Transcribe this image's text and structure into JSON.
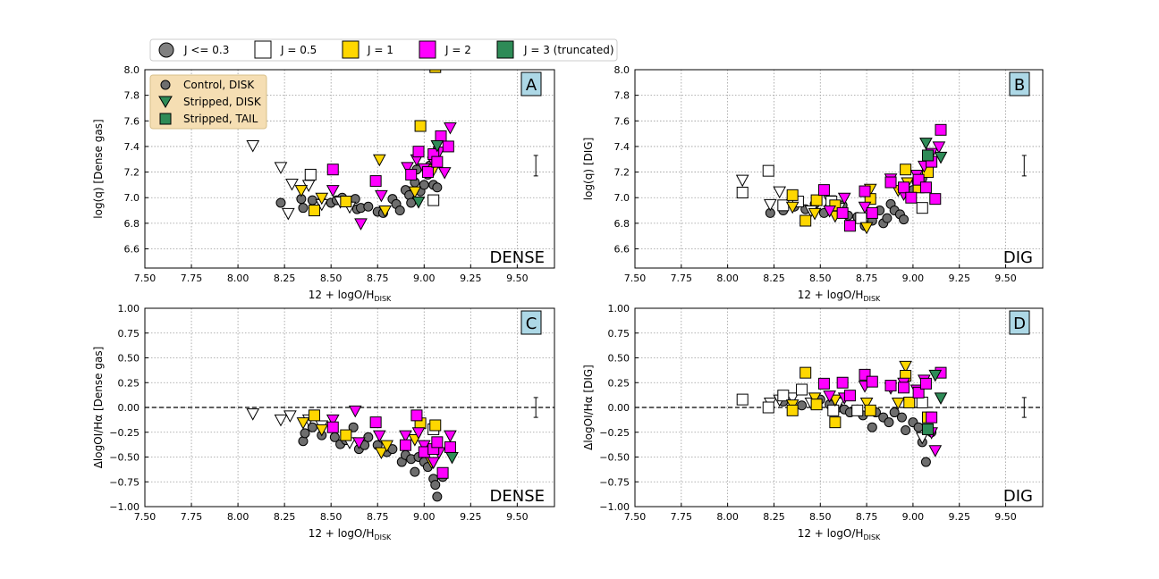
{
  "legend_top": {
    "entries": [
      {
        "label": "J <= 0.3",
        "marker": "circle",
        "color": "#808080"
      },
      {
        "label": "J = 0.5",
        "marker": "square",
        "color": "#ffffff"
      },
      {
        "label": "J = 1",
        "marker": "square",
        "color": "#ffd700"
      },
      {
        "label": "J = 2",
        "marker": "square",
        "color": "#ff00ff"
      },
      {
        "label": "J = 3 (truncated)",
        "marker": "square",
        "color": "#2e8b57"
      }
    ]
  },
  "legend_inner": {
    "entries": [
      {
        "label": "Control, DISK",
        "marker": "circle",
        "color": "#808080"
      },
      {
        "label": "Stripped, DISK",
        "marker": "triangle",
        "color": "#2e8b57"
      },
      {
        "label": "Stripped, TAIL",
        "marker": "square",
        "color": "#2e8b57"
      }
    ]
  },
  "colors": {
    "gray": "#6e6e6e",
    "white": "#ffffff",
    "yellow": "#ffd700",
    "magenta": "#ff00ff",
    "green": "#2e8b57",
    "panel_label_bg": "#add8e6",
    "legend_bg": "#f5deb3"
  },
  "chart_data": [
    {
      "id": "A",
      "type": "scatter",
      "label": "A",
      "annotation": "DENSE",
      "xlabel_main": "12 + logO/H",
      "xlabel_sub": "DISK",
      "ylabel": "log(q) [Dense gas]",
      "xlim": [
        7.5,
        9.7
      ],
      "ylim": [
        6.45,
        8.0
      ],
      "xticks": [
        "7.50",
        "7.75",
        "8.00",
        "8.25",
        "8.50",
        "8.75",
        "9.00",
        "9.25",
        "9.50"
      ],
      "yticks": [
        "6.6",
        "6.8",
        "7.0",
        "7.2",
        "7.4",
        "7.6",
        "7.8",
        "8.0"
      ],
      "errorbar": {
        "x": 9.6,
        "y": 7.25,
        "err": 0.08
      },
      "zero_line": false,
      "circles": [
        [
          8.23,
          6.96
        ],
        [
          8.34,
          6.99
        ],
        [
          8.35,
          6.92
        ],
        [
          8.4,
          6.98
        ],
        [
          8.45,
          6.97
        ],
        [
          8.5,
          6.96
        ],
        [
          8.53,
          6.98
        ],
        [
          8.56,
          7.0
        ],
        [
          8.6,
          6.95
        ],
        [
          8.63,
          6.99
        ],
        [
          8.64,
          6.91
        ],
        [
          8.66,
          6.92
        ],
        [
          8.7,
          6.93
        ],
        [
          8.75,
          6.89
        ],
        [
          8.78,
          6.88
        ],
        [
          8.83,
          6.99
        ],
        [
          8.85,
          6.95
        ],
        [
          8.87,
          6.9
        ],
        [
          8.9,
          7.06
        ],
        [
          8.92,
          7.02
        ],
        [
          8.93,
          6.96
        ],
        [
          8.95,
          7.12
        ],
        [
          8.96,
          7.22
        ],
        [
          8.98,
          7.05
        ],
        [
          9.0,
          7.1
        ],
        [
          9.02,
          7.18
        ],
        [
          9.03,
          7.25
        ],
        [
          9.05,
          7.1
        ],
        [
          9.07,
          7.08
        ]
      ],
      "squares_white": [
        [
          8.39,
          7.18
        ],
        [
          9.05,
          6.98
        ]
      ],
      "squares_yellow": [
        [
          8.41,
          6.9
        ],
        [
          8.58,
          6.97
        ],
        [
          8.98,
          7.56
        ],
        [
          9.06,
          8.02
        ]
      ],
      "squares_magenta": [
        [
          8.51,
          7.22
        ],
        [
          8.74,
          7.13
        ],
        [
          8.93,
          7.18
        ],
        [
          8.97,
          7.36
        ],
        [
          9.02,
          7.2
        ],
        [
          9.05,
          7.34
        ],
        [
          9.07,
          7.28
        ],
        [
          9.09,
          7.48
        ],
        [
          9.13,
          7.4
        ]
      ],
      "tri_white": [
        [
          8.08,
          7.41
        ],
        [
          8.23,
          7.24
        ],
        [
          8.27,
          6.88
        ],
        [
          8.29,
          7.11
        ],
        [
          8.38,
          7.1
        ],
        [
          8.45,
          6.95
        ],
        [
          8.55,
          6.97
        ],
        [
          8.6,
          6.93
        ]
      ],
      "tri_yellow": [
        [
          8.34,
          7.06
        ],
        [
          8.45,
          7.0
        ],
        [
          8.76,
          7.3
        ],
        [
          8.79,
          6.9
        ],
        [
          8.95,
          7.05
        ],
        [
          9.05,
          7.22
        ]
      ],
      "tri_magenta": [
        [
          8.51,
          7.06
        ],
        [
          8.66,
          6.8
        ],
        [
          8.77,
          7.02
        ],
        [
          8.91,
          7.24
        ],
        [
          8.96,
          7.3
        ],
        [
          9.0,
          7.23
        ],
        [
          9.05,
          7.28
        ],
        [
          9.08,
          7.36
        ],
        [
          9.11,
          7.2
        ],
        [
          9.14,
          7.55
        ]
      ],
      "tri_green": [
        [
          8.97,
          6.97
        ],
        [
          9.07,
          7.41
        ]
      ],
      "squares_green": []
    },
    {
      "id": "B",
      "type": "scatter",
      "label": "B",
      "annotation": "DIG",
      "xlabel_main": "12 + logO/H",
      "xlabel_sub": "DISK",
      "ylabel": "log(q) [DIG]",
      "xlim": [
        7.5,
        9.7
      ],
      "ylim": [
        6.45,
        8.0
      ],
      "xticks": [
        "7.50",
        "7.75",
        "8.00",
        "8.25",
        "8.50",
        "8.75",
        "9.00",
        "9.25",
        "9.50"
      ],
      "yticks": [
        "6.6",
        "6.8",
        "7.0",
        "7.2",
        "7.4",
        "7.6",
        "7.8",
        "8.0"
      ],
      "errorbar": {
        "x": 9.6,
        "y": 7.25,
        "err": 0.08
      },
      "zero_line": false,
      "circles": [
        [
          8.23,
          6.88
        ],
        [
          8.3,
          6.9
        ],
        [
          8.36,
          6.93
        ],
        [
          8.42,
          6.91
        ],
        [
          8.47,
          6.95
        ],
        [
          8.52,
          6.88
        ],
        [
          8.55,
          6.93
        ],
        [
          8.58,
          6.9
        ],
        [
          8.62,
          6.94
        ],
        [
          8.65,
          6.86
        ],
        [
          8.7,
          6.85
        ],
        [
          8.74,
          6.78
        ],
        [
          8.78,
          6.82
        ],
        [
          8.82,
          6.9
        ],
        [
          8.84,
          6.8
        ],
        [
          8.86,
          6.84
        ],
        [
          8.88,
          6.95
        ],
        [
          8.9,
          6.9
        ],
        [
          8.93,
          6.87
        ],
        [
          8.95,
          6.83
        ],
        [
          8.98,
          7.03
        ],
        [
          9.0,
          7.06
        ],
        [
          9.02,
          7.12
        ],
        [
          9.05,
          7.15
        ],
        [
          9.08,
          7.2
        ]
      ],
      "squares_white": [
        [
          8.08,
          7.04
        ],
        [
          8.22,
          7.21
        ],
        [
          8.3,
          6.94
        ],
        [
          8.38,
          6.97
        ],
        [
          8.56,
          6.97
        ],
        [
          8.72,
          6.84
        ],
        [
          9.05,
          6.92
        ]
      ],
      "squares_yellow": [
        [
          8.35,
          7.02
        ],
        [
          8.42,
          6.82
        ],
        [
          8.48,
          6.98
        ],
        [
          8.58,
          6.94
        ],
        [
          8.77,
          6.99
        ],
        [
          8.96,
          7.22
        ],
        [
          9.03,
          7.08
        ],
        [
          9.08,
          7.2
        ]
      ],
      "squares_magenta": [
        [
          8.52,
          7.06
        ],
        [
          8.62,
          6.88
        ],
        [
          8.66,
          6.78
        ],
        [
          8.74,
          7.05
        ],
        [
          8.78,
          6.88
        ],
        [
          8.88,
          7.12
        ],
        [
          8.95,
          7.08
        ],
        [
          8.99,
          7.0
        ],
        [
          9.03,
          7.14
        ],
        [
          9.07,
          7.08
        ],
        [
          9.1,
          7.28
        ],
        [
          9.12,
          6.99
        ],
        [
          9.15,
          7.53
        ]
      ],
      "tri_white": [
        [
          8.08,
          7.14
        ],
        [
          8.23,
          6.95
        ],
        [
          8.28,
          7.05
        ],
        [
          8.35,
          6.95
        ],
        [
          8.45,
          6.9
        ],
        [
          8.55,
          6.98
        ],
        [
          8.6,
          6.92
        ]
      ],
      "tri_yellow": [
        [
          8.35,
          6.93
        ],
        [
          8.47,
          6.88
        ],
        [
          8.58,
          6.86
        ],
        [
          8.75,
          6.77
        ],
        [
          8.77,
          7.07
        ],
        [
          8.92,
          7.06
        ],
        [
          8.97,
          7.12
        ]
      ],
      "tri_magenta": [
        [
          8.55,
          6.9
        ],
        [
          8.63,
          7.0
        ],
        [
          8.74,
          6.93
        ],
        [
          8.88,
          7.15
        ],
        [
          8.95,
          7.03
        ],
        [
          9.02,
          7.18
        ],
        [
          9.06,
          7.25
        ],
        [
          9.1,
          7.35
        ],
        [
          9.14,
          7.4
        ]
      ],
      "tri_green": [
        [
          9.07,
          7.43
        ],
        [
          9.15,
          7.32
        ]
      ],
      "squares_green": [
        [
          9.08,
          7.33
        ]
      ]
    },
    {
      "id": "C",
      "type": "scatter",
      "label": "C",
      "annotation": "DENSE",
      "xlabel_main": "12 + logO/H",
      "xlabel_sub": "DISK",
      "ylabel": "ΔlogOI/Hα [Dense gas]",
      "xlim": [
        7.5,
        9.7
      ],
      "ylim": [
        -1.0,
        1.0
      ],
      "xticks": [
        "7.50",
        "7.75",
        "8.00",
        "8.25",
        "8.50",
        "8.75",
        "9.00",
        "9.25",
        "9.50"
      ],
      "yticks": [
        "−1.00",
        "−0.75",
        "−0.50",
        "−0.25",
        "0.00",
        "0.25",
        "0.50",
        "0.75",
        "1.00"
      ],
      "errorbar": {
        "x": 9.6,
        "y": 0.0,
        "err": 0.1
      },
      "zero_line": true,
      "circles": [
        [
          8.35,
          -0.34
        ],
        [
          8.36,
          -0.26
        ],
        [
          8.4,
          -0.2
        ],
        [
          8.45,
          -0.28
        ],
        [
          8.52,
          -0.3
        ],
        [
          8.55,
          -0.37
        ],
        [
          8.58,
          -0.33
        ],
        [
          8.62,
          -0.2
        ],
        [
          8.65,
          -0.42
        ],
        [
          8.68,
          -0.38
        ],
        [
          8.7,
          -0.3
        ],
        [
          8.75,
          -0.38
        ],
        [
          8.8,
          -0.45
        ],
        [
          8.83,
          -0.42
        ],
        [
          8.88,
          -0.55
        ],
        [
          8.9,
          -0.48
        ],
        [
          8.93,
          -0.52
        ],
        [
          8.95,
          -0.65
        ],
        [
          8.97,
          -0.5
        ],
        [
          9.0,
          -0.55
        ],
        [
          9.02,
          -0.6
        ],
        [
          9.05,
          -0.72
        ],
        [
          9.06,
          -0.78
        ],
        [
          9.07,
          -0.9
        ],
        [
          9.1,
          -0.7
        ]
      ],
      "squares_white": [
        [
          9.05,
          -0.22
        ]
      ],
      "squares_yellow": [
        [
          8.41,
          -0.08
        ],
        [
          8.58,
          -0.28
        ],
        [
          8.98,
          -0.16
        ],
        [
          9.06,
          -0.18
        ]
      ],
      "squares_magenta": [
        [
          8.51,
          -0.2
        ],
        [
          8.74,
          -0.15
        ],
        [
          8.9,
          -0.38
        ],
        [
          8.96,
          -0.08
        ],
        [
          9.0,
          -0.45
        ],
        [
          9.05,
          -0.42
        ],
        [
          9.07,
          -0.35
        ],
        [
          9.1,
          -0.66
        ],
        [
          9.14,
          -0.4
        ]
      ],
      "tri_white": [
        [
          8.08,
          -0.06
        ],
        [
          8.23,
          -0.12
        ],
        [
          8.28,
          -0.08
        ],
        [
          8.38,
          -0.12
        ],
        [
          8.45,
          -0.18
        ],
        [
          8.6,
          -0.35
        ]
      ],
      "tri_yellow": [
        [
          8.35,
          -0.15
        ],
        [
          8.45,
          -0.22
        ],
        [
          8.77,
          -0.45
        ],
        [
          8.8,
          -0.38
        ],
        [
          8.95,
          -0.32
        ],
        [
          9.04,
          -0.55
        ]
      ],
      "tri_magenta": [
        [
          8.51,
          -0.12
        ],
        [
          8.63,
          -0.03
        ],
        [
          8.65,
          -0.35
        ],
        [
          8.76,
          -0.28
        ],
        [
          8.9,
          -0.28
        ],
        [
          8.97,
          -0.25
        ],
        [
          9.0,
          -0.38
        ],
        [
          9.05,
          -0.55
        ],
        [
          9.08,
          -0.45
        ],
        [
          9.14,
          -0.28
        ]
      ],
      "tri_green": [
        [
          9.15,
          -0.5
        ]
      ],
      "squares_green": []
    },
    {
      "id": "D",
      "type": "scatter",
      "label": "D",
      "annotation": "DIG",
      "xlabel_main": "12 + logO/H",
      "xlabel_sub": "DISK",
      "ylabel": "ΔlogOI/Hα [DIG]",
      "xlim": [
        7.5,
        9.7
      ],
      "ylim": [
        -1.0,
        1.0
      ],
      "xticks": [
        "7.50",
        "7.75",
        "8.00",
        "8.25",
        "8.50",
        "8.75",
        "9.00",
        "9.25",
        "9.50"
      ],
      "yticks": [
        "−1.00",
        "−0.75",
        "−0.50",
        "−0.25",
        "0.00",
        "0.25",
        "0.50",
        "0.75",
        "1.00"
      ],
      "errorbar": {
        "x": 9.6,
        "y": 0.0,
        "err": 0.1
      },
      "zero_line": true,
      "circles": [
        [
          8.3,
          0.06
        ],
        [
          8.4,
          0.02
        ],
        [
          8.5,
          0.08
        ],
        [
          8.55,
          0.03
        ],
        [
          8.6,
          0.0
        ],
        [
          8.63,
          -0.02
        ],
        [
          8.66,
          -0.05
        ],
        [
          8.7,
          -0.02
        ],
        [
          8.73,
          -0.08
        ],
        [
          8.78,
          -0.2
        ],
        [
          8.8,
          -0.05
        ],
        [
          8.84,
          -0.1
        ],
        [
          8.87,
          -0.15
        ],
        [
          8.9,
          -0.05
        ],
        [
          8.94,
          -0.1
        ],
        [
          8.96,
          -0.23
        ],
        [
          9.0,
          -0.15
        ],
        [
          9.03,
          -0.2
        ],
        [
          9.05,
          -0.35
        ],
        [
          9.07,
          -0.55
        ],
        [
          9.08,
          -0.1
        ],
        [
          9.1,
          -0.25
        ]
      ],
      "squares_white": [
        [
          8.08,
          0.08
        ],
        [
          8.22,
          0.0
        ],
        [
          8.3,
          0.12
        ],
        [
          8.4,
          0.18
        ],
        [
          8.57,
          -0.03
        ],
        [
          8.7,
          -0.03
        ],
        [
          9.05,
          0.05
        ]
      ],
      "squares_yellow": [
        [
          8.35,
          -0.03
        ],
        [
          8.42,
          0.35
        ],
        [
          8.48,
          0.03
        ],
        [
          8.58,
          -0.15
        ],
        [
          8.77,
          -0.03
        ],
        [
          8.96,
          0.32
        ],
        [
          8.98,
          0.05
        ],
        [
          9.08,
          -0.1
        ]
      ],
      "squares_magenta": [
        [
          8.52,
          0.24
        ],
        [
          8.62,
          0.25
        ],
        [
          8.66,
          0.12
        ],
        [
          8.74,
          0.33
        ],
        [
          8.78,
          0.26
        ],
        [
          8.88,
          0.22
        ],
        [
          8.95,
          0.2
        ],
        [
          9.03,
          0.15
        ],
        [
          9.07,
          0.24
        ],
        [
          9.1,
          -0.1
        ],
        [
          9.15,
          0.35
        ]
      ],
      "tri_white": [
        [
          8.23,
          0.05
        ],
        [
          8.28,
          0.08
        ],
        [
          8.35,
          0.1
        ],
        [
          8.45,
          0.05
        ],
        [
          8.6,
          0.05
        ],
        [
          9.05,
          -0.3
        ]
      ],
      "tri_yellow": [
        [
          8.35,
          0.03
        ],
        [
          8.47,
          0.1
        ],
        [
          8.58,
          0.08
        ],
        [
          8.75,
          0.05
        ],
        [
          8.92,
          0.05
        ],
        [
          8.96,
          0.42
        ]
      ],
      "tri_magenta": [
        [
          8.55,
          0.12
        ],
        [
          8.63,
          0.1
        ],
        [
          8.74,
          0.22
        ],
        [
          8.88,
          0.2
        ],
        [
          8.95,
          0.25
        ],
        [
          9.02,
          0.18
        ],
        [
          9.06,
          0.28
        ],
        [
          9.1,
          -0.25
        ],
        [
          9.12,
          -0.43
        ]
      ],
      "tri_green": [
        [
          9.12,
          0.33
        ],
        [
          9.15,
          0.1
        ]
      ],
      "squares_green": [
        [
          9.08,
          -0.22
        ]
      ]
    }
  ]
}
